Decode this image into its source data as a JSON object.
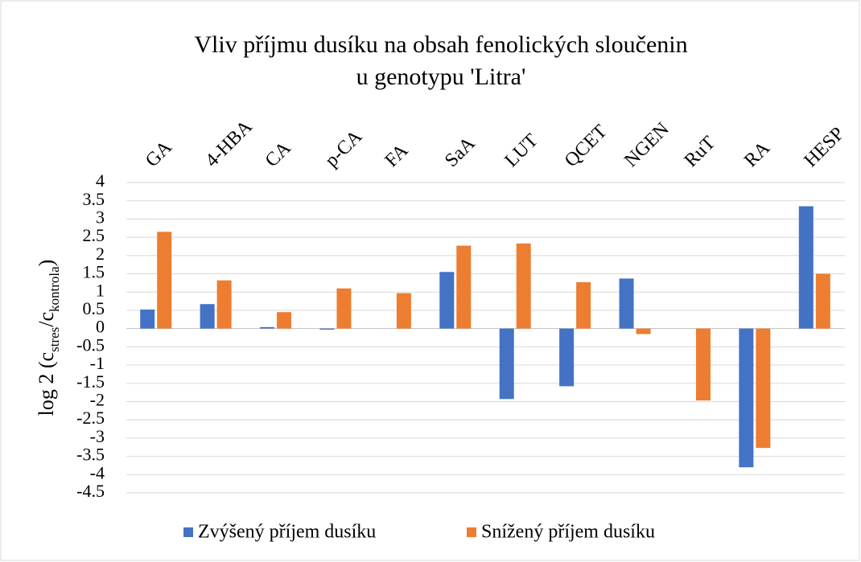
{
  "chart_data": {
    "type": "bar",
    "title": [
      "Vliv příjmu dusíku na obsah fenolických sloučenin",
      "u genotypu 'Litra'"
    ],
    "y_label": {
      "prefix": "log 2 (c",
      "sub1": "stres",
      "mid": "/c",
      "sub2": "kontrola",
      "suffix": ")"
    },
    "categories": [
      "GA",
      "4-HBA",
      "CA",
      "p-CA",
      "FA",
      "SaA",
      "LUT",
      "QCET",
      "NGEN",
      "RuT",
      "RA",
      "HESP"
    ],
    "series": [
      {
        "name": "Zvýšený příjem dusíku",
        "color": "#4472c4",
        "values": [
          0.52,
          0.67,
          0.04,
          -0.03,
          0,
          1.55,
          -1.93,
          -1.58,
          1.37,
          0,
          -3.8,
          3.35
        ]
      },
      {
        "name": "Snížený příjem dusíku",
        "color": "#ed7d31",
        "values": [
          2.65,
          1.32,
          0.45,
          1.1,
          0.97,
          2.27,
          2.33,
          1.27,
          -0.15,
          -1.97,
          -3.27,
          1.5
        ]
      }
    ],
    "ylim": [
      -4.5,
      4
    ],
    "yticks": [
      4,
      3.5,
      3,
      2.5,
      2,
      1.5,
      1,
      0.5,
      0,
      -0.5,
      -1,
      -1.5,
      -2,
      -2.5,
      -3,
      -3.5,
      -4,
      -4.5
    ],
    "grid": true,
    "legend": "bottom"
  }
}
